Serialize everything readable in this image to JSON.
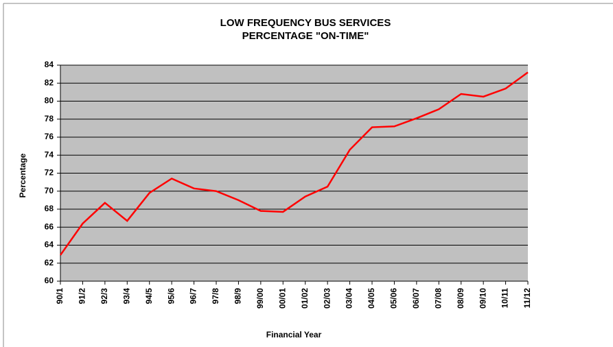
{
  "chart_data": {
    "type": "line",
    "title": "LOW FREQUENCY BUS SERVICES",
    "subtitle": "PERCENTAGE \"ON-TIME\"",
    "x_label": "Financial Year",
    "y_label": "Percentage",
    "categories": [
      "90/1",
      "91/2",
      "92/3",
      "93/4",
      "94/5",
      "95/6",
      "96/7",
      "97/8",
      "98/9",
      "99/00",
      "00/01",
      "01/02",
      "02/03",
      "03/04",
      "04/05",
      "05/06",
      "06/07",
      "07/08",
      "08/09",
      "09/10",
      "10/11",
      "11/12"
    ],
    "series": [
      {
        "name": "Percentage",
        "color": "#ff0000",
        "values": [
          62.9,
          66.4,
          68.7,
          66.7,
          69.8,
          71.4,
          70.3,
          70.0,
          69.0,
          67.8,
          67.7,
          69.4,
          70.5,
          74.6,
          77.1,
          77.2,
          78.1,
          79.1,
          80.8,
          80.5,
          81.4,
          83.2
        ]
      }
    ],
    "ylim": [
      60,
      84
    ],
    "yticks": [
      60,
      62,
      64,
      66,
      68,
      70,
      72,
      74,
      76,
      78,
      80,
      82,
      84
    ],
    "grid": true,
    "plot_background": "#c0c0c0"
  }
}
